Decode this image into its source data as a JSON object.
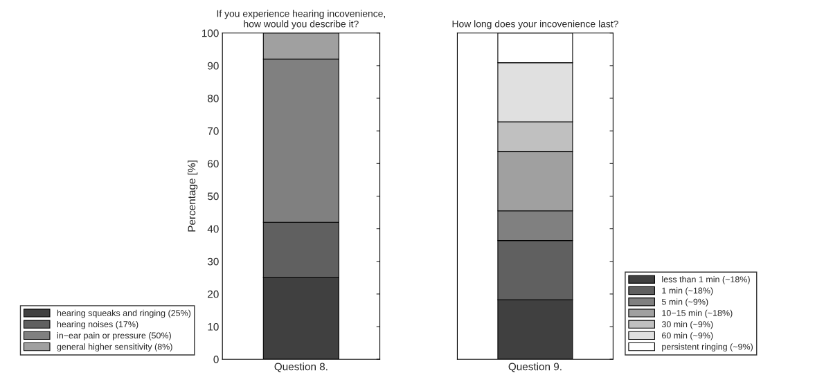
{
  "chart_data": [
    {
      "type": "bar",
      "stacked": true,
      "title": "If you experience hearing incovenience,\nhow would you describe it?",
      "ylabel": "Percentage [%]",
      "categories": [
        "Question 8."
      ],
      "ylim": [
        0,
        100
      ],
      "yticks": [
        0,
        10,
        20,
        30,
        40,
        50,
        60,
        70,
        80,
        90,
        100
      ],
      "legend": "bottom left",
      "series": [
        {
          "name": "hearing squeaks and ringing (25%)",
          "color": "#404040",
          "values": [
            25
          ]
        },
        {
          "name": "hearing noises (17%)",
          "color": "#606060",
          "values": [
            17
          ]
        },
        {
          "name": "in−ear pain or pressure (50%)",
          "color": "#808080",
          "values": [
            50
          ]
        },
        {
          "name": "general higher sensitivity (8%)",
          "color": "#a0a0a0",
          "values": [
            8
          ]
        }
      ]
    },
    {
      "type": "bar",
      "stacked": true,
      "title": "How long does your incovenience last?",
      "categories": [
        "Question 9."
      ],
      "ylim": [
        0,
        100
      ],
      "tick_labels": "x",
      "legend": "bottom right",
      "series": [
        {
          "name": "less than 1 min (~18%)",
          "color": "#404040",
          "values": [
            18.2
          ]
        },
        {
          "name": "1 min (~18%)",
          "color": "#606060",
          "values": [
            18.2
          ]
        },
        {
          "name": "5 min (~9%)",
          "color": "#808080",
          "values": [
            9.1
          ]
        },
        {
          "name": "10−15 min (~18%)",
          "color": "#a0a0a0",
          "values": [
            18.2
          ]
        },
        {
          "name": "30 min (~9%)",
          "color": "#c0c0c0",
          "values": [
            9.1
          ]
        },
        {
          "name": "60 min (~9%)",
          "color": "#e0e0e0",
          "values": [
            18.1
          ]
        },
        {
          "name": "persistent ringing (~9%)",
          "color": "#ffffff",
          "values": [
            9.1
          ]
        }
      ]
    }
  ]
}
